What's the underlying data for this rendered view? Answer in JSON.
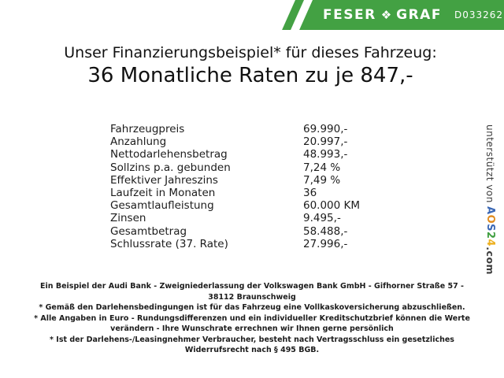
{
  "header": {
    "logo_part1": "FESER",
    "logo_part2": "GRAF",
    "logo_icon": "clover-diamond-icon",
    "logo_icon_glyph": "❖",
    "dealer_id": "D033262",
    "banner_color": "#43a143"
  },
  "title": {
    "line1": "Unser Finanzierungsbeispiel* für dieses Fahrzeug:",
    "line2": "36 Monatliche Raten zu je 847,-"
  },
  "financing_table": {
    "rows": [
      {
        "label": "Fahrzeugpreis",
        "value": "69.990,-"
      },
      {
        "label": "Anzahlung",
        "value": "20.997,-"
      },
      {
        "label": "Nettodarlehensbetrag",
        "value": "48.993,-"
      },
      {
        "label": "Sollzins p.a. gebunden",
        "value": "7,24 %"
      },
      {
        "label": "Effektiver Jahreszins",
        "value": "7,49 %"
      },
      {
        "label": "Laufzeit in Monaten",
        "value": "36"
      },
      {
        "label": "Gesamtlaufleistung",
        "value": "60.000 KM"
      },
      {
        "label": "Zinsen",
        "value": "9.495,-"
      },
      {
        "label": "Gesamtbetrag",
        "value": "58.488,-"
      },
      {
        "label": "Schlussrate (37. Rate)",
        "value": "27.996,-"
      }
    ]
  },
  "footnotes": [
    "Ein Beispiel der Audi Bank - Zweigniederlassung der Volkswagen Bank GmbH - Gifhorner Straße 57 - 38112 Braunschweig",
    "* Gemäß den Darlehensbedingungen ist für das Fahrzeug eine Vollkaskoversicherung abzuschließen.",
    "* Alle Angaben in Euro - Rundungsdifferenzen und ein individueller Kreditschutzbrief können die Werte verändern - Ihre Wunschrate errechnen wir Ihnen gerne persönlich",
    "* Ist der Darlehens-/Leasingnehmer Verbraucher, besteht nach Vertragsschluss ein gesetzliches Widerrufsrecht nach § 495 BGB."
  ],
  "support": {
    "prefix": "unterstützt von ",
    "brand_letters": [
      {
        "char": "A",
        "color": "#3a67b5"
      },
      {
        "char": "O",
        "color": "#e08c1e"
      },
      {
        "char": "S",
        "color": "#3a67b5"
      },
      {
        "char": "2",
        "color": "#3f9e3f"
      },
      {
        "char": "4",
        "color": "#edb01f"
      }
    ],
    "suffix": ".com"
  }
}
